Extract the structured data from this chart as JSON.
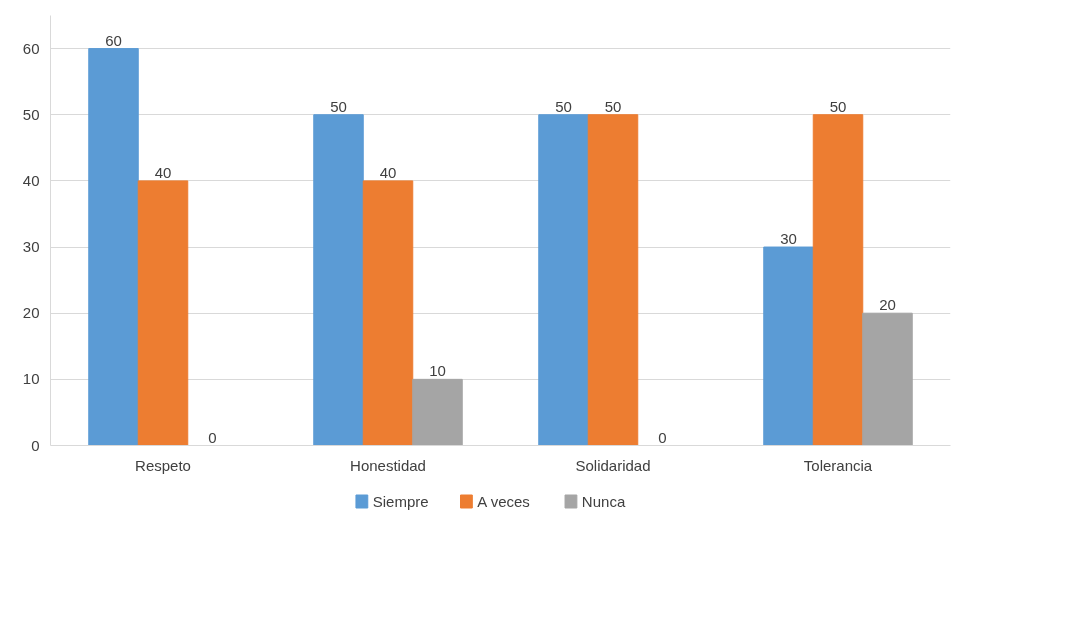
{
  "chart_data": {
    "type": "bar",
    "categories": [
      "Respeto",
      "Honestidad",
      "Solidaridad",
      "Tolerancia"
    ],
    "series": [
      {
        "name": "Siempre",
        "color": "#5b9bd5",
        "values": [
          60,
          50,
          50,
          30
        ]
      },
      {
        "name": "A veces",
        "color": "#ed7d31",
        "values": [
          40,
          40,
          50,
          50
        ]
      },
      {
        "name": "Nunca",
        "color": "#a5a5a5",
        "values": [
          0,
          10,
          0,
          20
        ]
      }
    ],
    "ylim": [
      0,
      65
    ],
    "yticks": [
      0,
      10,
      20,
      30,
      40,
      50,
      60
    ],
    "grid": "y",
    "legend": "bottom",
    "data_labels": true
  }
}
